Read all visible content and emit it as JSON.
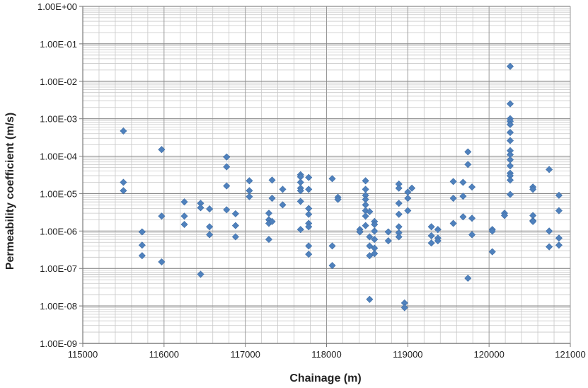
{
  "chart_data": {
    "type": "scatter",
    "xlabel": "Chainage (m)",
    "ylabel": "Permeability coefficient (m/s)",
    "xlim": [
      115000,
      121000
    ],
    "ylim": [
      1e-09,
      1
    ],
    "y_scale": "log",
    "grid": true,
    "marker_color": "#4f81bd",
    "x_ticks": [
      115000,
      116000,
      117000,
      118000,
      119000,
      120000,
      121000
    ],
    "x_tick_labels": [
      "115000",
      "116000",
      "117000",
      "118000",
      "119000",
      "120000",
      "121000"
    ],
    "y_ticks": [
      1,
      0.1,
      0.01,
      0.001,
      0.0001,
      1e-05,
      1e-06,
      1e-07,
      1e-08,
      1e-09
    ],
    "y_tick_labels": [
      "1.00E+00",
      "1.00E-01",
      "1.00E-02",
      "1.00E-03",
      "1.00E-04",
      "1.00E-05",
      "1.00E-06",
      "1.00E-07",
      "1.00E-08",
      "1.00E-09"
    ],
    "points": [
      [
        115500,
        0.00047
      ],
      [
        115500,
        2e-05
      ],
      [
        115500,
        1.2e-05
      ],
      [
        115730,
        9.5e-07
      ],
      [
        115730,
        4.2e-07
      ],
      [
        115730,
        2.2e-07
      ],
      [
        115970,
        0.00015
      ],
      [
        115970,
        2.5e-06
      ],
      [
        115970,
        1.5e-07
      ],
      [
        116250,
        6e-06
      ],
      [
        116250,
        2.5e-06
      ],
      [
        116250,
        1.5e-06
      ],
      [
        116450,
        5.5e-06
      ],
      [
        116450,
        4.2e-06
      ],
      [
        116450,
        7e-08
      ],
      [
        116560,
        3.9e-06
      ],
      [
        116560,
        1.3e-06
      ],
      [
        116560,
        8e-07
      ],
      [
        116770,
        9.5e-05
      ],
      [
        116770,
        5.2e-05
      ],
      [
        116770,
        1.6e-05
      ],
      [
        116770,
        3.7e-06
      ],
      [
        116880,
        2.9e-06
      ],
      [
        116880,
        1.4e-06
      ],
      [
        116880,
        7e-07
      ],
      [
        117050,
        2.2e-05
      ],
      [
        117050,
        1.2e-05
      ],
      [
        117050,
        8.3e-06
      ],
      [
        117290,
        3e-06
      ],
      [
        117290,
        2e-06
      ],
      [
        117290,
        1.6e-06
      ],
      [
        117290,
        6e-07
      ],
      [
        117330,
        2.3e-05
      ],
      [
        117330,
        7.5e-06
      ],
      [
        117330,
        1.8e-06
      ],
      [
        117460,
        1.3e-05
      ],
      [
        117460,
        5e-06
      ],
      [
        117680,
        3.2e-05
      ],
      [
        117680,
        2.8e-05
      ],
      [
        117680,
        2e-05
      ],
      [
        117680,
        1.4e-05
      ],
      [
        117680,
        1.2e-05
      ],
      [
        117680,
        6.2e-06
      ],
      [
        117680,
        1.1e-06
      ],
      [
        117780,
        2.7e-05
      ],
      [
        117780,
        1.3e-05
      ],
      [
        117780,
        4e-06
      ],
      [
        117780,
        2.8e-06
      ],
      [
        117780,
        1.6e-06
      ],
      [
        117780,
        1.3e-06
      ],
      [
        117780,
        4e-07
      ],
      [
        117780,
        2.4e-07
      ],
      [
        118070,
        2.5e-05
      ],
      [
        118070,
        4e-07
      ],
      [
        118070,
        1.2e-07
      ],
      [
        118140,
        8e-06
      ],
      [
        118140,
        7e-06
      ],
      [
        118410,
        1.1e-06
      ],
      [
        118410,
        9.5e-07
      ],
      [
        118480,
        2.2e-05
      ],
      [
        118480,
        1.3e-05
      ],
      [
        118480,
        9e-06
      ],
      [
        118480,
        7e-06
      ],
      [
        118480,
        5e-06
      ],
      [
        118480,
        3.5e-06
      ],
      [
        118480,
        2.5e-06
      ],
      [
        118480,
        1.4e-06
      ],
      [
        118530,
        3.3e-06
      ],
      [
        118530,
        7e-07
      ],
      [
        118530,
        4e-07
      ],
      [
        118530,
        2.2e-07
      ],
      [
        118530,
        1.5e-08
      ],
      [
        118590,
        1.8e-06
      ],
      [
        118590,
        1.5e-06
      ],
      [
        118590,
        1e-06
      ],
      [
        118590,
        6e-07
      ],
      [
        118590,
        3.5e-07
      ],
      [
        118590,
        2.5e-07
      ],
      [
        118760,
        9.5e-07
      ],
      [
        118760,
        5.5e-07
      ],
      [
        118890,
        1.8e-05
      ],
      [
        118890,
        1.4e-05
      ],
      [
        118890,
        5.5e-06
      ],
      [
        118890,
        2.8e-06
      ],
      [
        118890,
        1.3e-06
      ],
      [
        118890,
        9e-07
      ],
      [
        118890,
        7e-07
      ],
      [
        118960,
        1.2e-08
      ],
      [
        118960,
        9e-09
      ],
      [
        119000,
        1.1e-05
      ],
      [
        119000,
        7.5e-06
      ],
      [
        119000,
        3.5e-06
      ],
      [
        119050,
        1.4e-05
      ],
      [
        119290,
        1.3e-06
      ],
      [
        119290,
        7.5e-07
      ],
      [
        119290,
        4.8e-07
      ],
      [
        119370,
        1.1e-06
      ],
      [
        119370,
        6.5e-07
      ],
      [
        119370,
        5.5e-07
      ],
      [
        119560,
        2.1e-05
      ],
      [
        119560,
        7.5e-06
      ],
      [
        119560,
        1.6e-06
      ],
      [
        119680,
        2e-05
      ],
      [
        119680,
        8.5e-06
      ],
      [
        119680,
        2.4e-06
      ],
      [
        119740,
        0.00013
      ],
      [
        119740,
        6e-05
      ],
      [
        119740,
        5.5e-08
      ],
      [
        119790,
        1.5e-05
      ],
      [
        119790,
        2.2e-06
      ],
      [
        119790,
        8e-07
      ],
      [
        120040,
        1.1e-06
      ],
      [
        120040,
        1e-06
      ],
      [
        120040,
        2.8e-07
      ],
      [
        120190,
        3e-06
      ],
      [
        120190,
        2.6e-06
      ],
      [
        120260,
        0.025
      ],
      [
        120260,
        0.0025
      ],
      [
        120260,
        0.001
      ],
      [
        120260,
        0.00085
      ],
      [
        120260,
        0.0007
      ],
      [
        120260,
        0.00043
      ],
      [
        120260,
        0.00026
      ],
      [
        120260,
        0.00014
      ],
      [
        120260,
        0.00011
      ],
      [
        120260,
        8e-05
      ],
      [
        120260,
        5.5e-05
      ],
      [
        120260,
        3.5e-05
      ],
      [
        120260,
        3e-05
      ],
      [
        120260,
        2.3e-05
      ],
      [
        120260,
        9.5e-06
      ],
      [
        120540,
        1.5e-05
      ],
      [
        120540,
        1.3e-05
      ],
      [
        120540,
        2.6e-06
      ],
      [
        120540,
        1.9e-06
      ],
      [
        120540,
        1.8e-06
      ],
      [
        120740,
        4.4e-05
      ],
      [
        120740,
        1e-06
      ],
      [
        120740,
        3.8e-07
      ],
      [
        120860,
        9e-06
      ],
      [
        120860,
        3.5e-06
      ],
      [
        120860,
        6.5e-07
      ],
      [
        120860,
        4.2e-07
      ]
    ]
  }
}
